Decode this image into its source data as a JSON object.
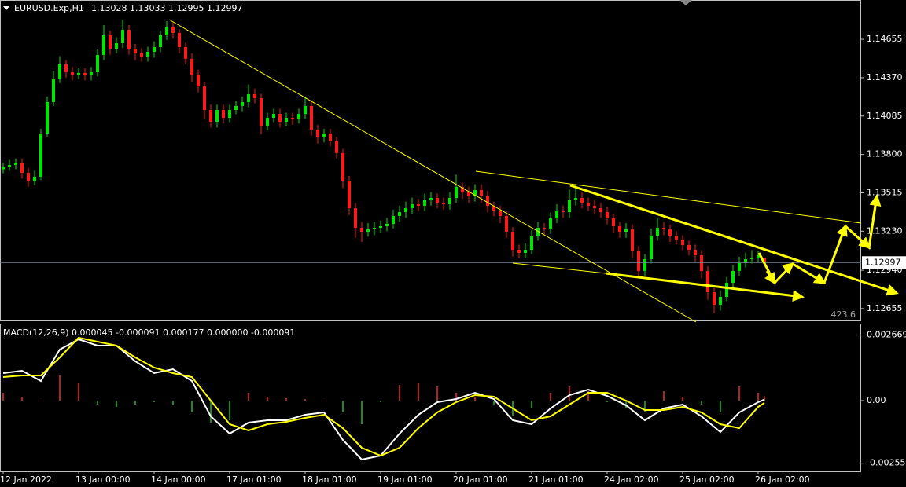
{
  "chart_data": [
    {
      "type": "candlestick",
      "title": "EURUSD.Exp,H1",
      "ohlc_label": "1.13028 1.13033 1.12995 1.12997",
      "up_color": "#00e600",
      "down_color": "#ff1a1a",
      "xlim": [
        -0.5,
        136.375
      ],
      "ylim": [
        1.12567,
        1.14947
      ],
      "yticks": [
        1.14655,
        {
          "value": 1.1437,
          "label": "1.14370"
        },
        1.14085,
        {
          "value": 1.138,
          "label": "1.13800"
        },
        1.13515,
        {
          "value": 1.1323,
          "label": "1.13230"
        },
        {
          "value": 1.1294,
          "label": "1.12940"
        },
        1.12655
      ],
      "xticks": [
        {
          "value": 0,
          "label": "12 Jan 2022"
        },
        {
          "value": 12,
          "label": "13 Jan 00:00"
        },
        {
          "value": 24,
          "label": "14 Jan 00:00"
        },
        {
          "value": 36,
          "label": "17 Jan 01:00"
        },
        {
          "value": 48,
          "label": "18 Jan 01:00"
        },
        {
          "value": 60,
          "label": "19 Jan 01:00"
        },
        {
          "value": 72,
          "label": "20 Jan 01:00"
        },
        {
          "value": 84,
          "label": "21 Jan 01:00"
        },
        {
          "value": 96,
          "label": "24 Jan 02:00"
        },
        {
          "value": 108,
          "label": "25 Jan 02:00"
        },
        {
          "value": 120,
          "label": "26 Jan 02:00"
        }
      ],
      "current_price": {
        "value": 1.12997,
        "label": "1.12997"
      },
      "level_label": "423.6",
      "open": [
        1.1369,
        1.13705,
        1.13722,
        1.13734,
        1.13664,
        1.13605,
        1.13635,
        1.13955,
        1.14189,
        1.14364,
        1.14469,
        1.1441,
        1.14393,
        1.14405,
        1.14387,
        1.1441,
        1.14539,
        1.14685,
        1.14585,
        1.14626,
        1.14725,
        1.14585,
        1.1455,
        1.14527,
        1.14562,
        1.14597,
        1.14685,
        1.14743,
        1.14702,
        1.14597,
        1.1451,
        1.14393,
        1.14305,
        1.1413,
        1.14043,
        1.1413,
        1.14072,
        1.1413,
        1.1416,
        1.14189,
        1.14247,
        1.14218,
        1.14014,
        1.14072,
        1.14101,
        1.14043,
        1.14072,
        1.1406,
        1.14101,
        1.1416,
        1.13985,
        1.13926,
        1.13955,
        1.13897,
        1.1381,
        1.13605,
        1.13401,
        1.13255,
        1.13226,
        1.13244,
        1.13255,
        1.13267,
        1.13285,
        1.13343,
        1.13372,
        1.13401,
        1.1343,
        1.13419,
        1.1346,
        1.13477,
        1.13442,
        1.1343,
        1.13477,
        1.13559,
        1.13518,
        1.13489,
        1.13535,
        1.13489,
        1.13419,
        1.13384,
        1.13343,
        1.13226,
        1.13092,
        1.13069,
        1.13092,
        1.13197,
        1.13255,
        1.13244,
        1.13325,
        1.13384,
        1.13372,
        1.1346,
        1.13477,
        1.13442,
        1.13419,
        1.13401,
        1.13372,
        1.13325,
        1.13267,
        1.13226,
        1.13244,
        1.1308,
        1.12935,
        1.13022,
        1.13197,
        1.13255,
        1.13244,
        1.13197,
        1.13168,
        1.13127,
        1.13092,
        1.13051,
        1.12935,
        1.12777,
        1.12684,
        1.12742,
        1.12847,
        1.12935,
        1.12993,
        1.13022,
        1.13034,
        1.13028
      ],
      "high": [
        1.1374,
        1.1376,
        1.1377,
        1.1377,
        1.137,
        1.1368,
        1.1399,
        1.1423,
        1.1442,
        1.1453,
        1.145,
        1.1445,
        1.1444,
        1.1444,
        1.1445,
        1.1458,
        1.1476,
        1.1472,
        1.1467,
        1.148,
        1.1476,
        1.1462,
        1.1459,
        1.146,
        1.1464,
        1.1472,
        1.1479,
        1.1478,
        1.1473,
        1.1463,
        1.1455,
        1.1443,
        1.1434,
        1.1417,
        1.1417,
        1.1417,
        1.1417,
        1.142,
        1.1423,
        1.1432,
        1.1429,
        1.1425,
        1.1411,
        1.1414,
        1.1414,
        1.1411,
        1.1411,
        1.1414,
        1.1422,
        1.142,
        1.1402,
        1.1399,
        1.1399,
        1.1393,
        1.1384,
        1.1364,
        1.1344,
        1.133,
        1.1329,
        1.133,
        1.1331,
        1.1333,
        1.1339,
        1.1342,
        1.1345,
        1.1348,
        1.1347,
        1.1351,
        1.1352,
        1.1351,
        1.1348,
        1.1352,
        1.1365,
        1.1359,
        1.1356,
        1.1358,
        1.1358,
        1.1353,
        1.1345,
        1.1342,
        1.1338,
        1.1326,
        1.1313,
        1.1314,
        1.1324,
        1.133,
        1.1329,
        1.1337,
        1.1343,
        1.1342,
        1.1354,
        1.1358,
        1.1352,
        1.1348,
        1.1346,
        1.1344,
        1.1341,
        1.1336,
        1.133,
        1.1329,
        1.1328,
        1.1312,
        1.1306,
        1.1325,
        1.1333,
        1.133,
        1.1328,
        1.1323,
        1.132,
        1.1316,
        1.1313,
        1.1309,
        1.1297,
        1.1281,
        1.1279,
        1.1289,
        1.1298,
        1.1304,
        1.1307,
        1.1309,
        1.1308,
        1.13033
      ],
      "low": [
        1.1366,
        1.1368,
        1.1369,
        1.1362,
        1.1356,
        1.1357,
        1.1361,
        1.1393,
        1.1416,
        1.1433,
        1.1437,
        1.1435,
        1.1436,
        1.1435,
        1.1435,
        1.1438,
        1.145,
        1.1454,
        1.1455,
        1.1459,
        1.1454,
        1.145,
        1.1449,
        1.1449,
        1.1452,
        1.1456,
        1.1465,
        1.1466,
        1.1455,
        1.1447,
        1.1434,
        1.1426,
        1.1406,
        1.14,
        1.14,
        1.1403,
        1.1404,
        1.141,
        1.1412,
        1.1415,
        1.1418,
        1.1395,
        1.1398,
        1.1404,
        1.14,
        1.1401,
        1.1402,
        1.1403,
        1.1406,
        1.1394,
        1.1388,
        1.1389,
        1.1386,
        1.1377,
        1.1355,
        1.1335,
        1.1318,
        1.1315,
        1.1319,
        1.132,
        1.1322,
        1.1323,
        1.1325,
        1.133,
        1.1333,
        1.1336,
        1.1338,
        1.1338,
        1.1342,
        1.134,
        1.1339,
        1.1339,
        1.1344,
        1.1347,
        1.1344,
        1.1345,
        1.1344,
        1.1337,
        1.1334,
        1.1329,
        1.1318,
        1.1304,
        1.1303,
        1.1303,
        1.1306,
        1.1316,
        1.132,
        1.1321,
        1.1329,
        1.1333,
        1.1333,
        1.1342,
        1.134,
        1.1338,
        1.1336,
        1.1333,
        1.1328,
        1.1322,
        1.1318,
        1.1318,
        1.1303,
        1.1288,
        1.129,
        1.1299,
        1.1316,
        1.132,
        1.1315,
        1.1313,
        1.1309,
        1.1305,
        1.13,
        1.1288,
        1.1272,
        1.1262,
        1.1264,
        1.1271,
        1.1281,
        1.129,
        1.1296,
        1.1299,
        1.13,
        1.12995
      ],
      "close": [
        1.13705,
        1.13722,
        1.13734,
        1.13664,
        1.13605,
        1.13635,
        1.13955,
        1.14189,
        1.14364,
        1.14469,
        1.1441,
        1.14393,
        1.14405,
        1.14387,
        1.1441,
        1.14539,
        1.14685,
        1.14585,
        1.14626,
        1.14725,
        1.14585,
        1.1455,
        1.14527,
        1.14562,
        1.14597,
        1.14685,
        1.14743,
        1.14702,
        1.14597,
        1.1451,
        1.14393,
        1.14305,
        1.1413,
        1.14043,
        1.1413,
        1.14072,
        1.1413,
        1.1416,
        1.14189,
        1.14247,
        1.14218,
        1.14014,
        1.14072,
        1.14101,
        1.14043,
        1.14072,
        1.1406,
        1.14101,
        1.1416,
        1.13985,
        1.13926,
        1.13955,
        1.13897,
        1.1381,
        1.13605,
        1.13401,
        1.13255,
        1.13226,
        1.13244,
        1.13255,
        1.13267,
        1.13285,
        1.13343,
        1.13372,
        1.13401,
        1.1343,
        1.13419,
        1.1346,
        1.13477,
        1.13442,
        1.1343,
        1.13477,
        1.13559,
        1.13518,
        1.13489,
        1.13535,
        1.13489,
        1.13419,
        1.13384,
        1.13343,
        1.13226,
        1.13092,
        1.13069,
        1.13092,
        1.13197,
        1.13255,
        1.13244,
        1.13325,
        1.13384,
        1.13372,
        1.1346,
        1.13477,
        1.13442,
        1.13419,
        1.13401,
        1.13372,
        1.13325,
        1.13267,
        1.13226,
        1.13244,
        1.1308,
        1.12935,
        1.13022,
        1.13197,
        1.13255,
        1.13244,
        1.13197,
        1.13168,
        1.13127,
        1.13092,
        1.13051,
        1.12935,
        1.12777,
        1.12684,
        1.12742,
        1.12847,
        1.12935,
        1.12993,
        1.13022,
        1.13034,
        1.13051,
        1.12997
      ]
    },
    {
      "type": "macd",
      "title": "MACD(12,26,9) 0.000045 -0.000091 0.000177 0.000000 -0.000091",
      "xlim": [
        -0.5,
        136.375
      ],
      "ylim": [
        -0.00288,
        0.003104
      ],
      "yticks": [
        0.002669,
        {
          "value": 0,
          "label": "0.00"
        },
        -0.002551
      ],
      "x": [
        0,
        3,
        6,
        9,
        12,
        15,
        18,
        21,
        24,
        27,
        30,
        33,
        36,
        39,
        42,
        45,
        48,
        51,
        54,
        57,
        60,
        63,
        66,
        69,
        72,
        75,
        78,
        81,
        84,
        87,
        90,
        93,
        96,
        99,
        102,
        105,
        108,
        111,
        114,
        117,
        120,
        121
      ],
      "series": [
        {
          "style": "histogram",
          "color": "#b22222",
          "negative_color": "#1f8a1f",
          "values": [
            0.00032,
            0.00016,
            0,
            0.001024,
            0.000704,
            -0.00016,
            -0.000256,
            -0.00016,
            -6.4e-05,
            -0.000192,
            -0.00048,
            -0.000896,
            -0.0008,
            0.00032,
            0.00016,
            9.6e-05,
            6.4e-05,
            0,
            -0.00048,
            -0.00096,
            -6.4e-05,
            0.00064,
            0.000704,
            0.000576,
            0.00032,
            0.00016,
            -0.00016,
            -0.00064,
            -0.00032,
            0.00032,
            0.000576,
            0.000384,
            -6.4e-05,
            -0.00032,
            -0.00048,
            0.000384,
            0.00016,
            -0.00016,
            -0.00048,
            0.000576,
            0.00032,
            0.000177
          ]
        },
        {
          "style": "line",
          "color": "#ffffff",
          "values": [
            0.00112,
            0.001216,
            0.0008,
            0.00208,
            0.002496,
            0.00224,
            0.00224,
            0.0016,
            0.00112,
            0.00128,
            0.0008,
            -0.00064,
            -0.001344,
            -0.000896,
            -0.0008,
            -0.0008,
            -0.000576,
            -0.00048,
            -0.0016,
            -0.0024,
            -0.00224,
            -0.001344,
            -0.000576,
            -6.4e-05,
            6.4e-05,
            0.00032,
            6.4e-05,
            -0.0008,
            -0.00096,
            -0.00032,
            0.000224,
            0.000448,
            0.000192,
            -0.000192,
            -0.0008,
            -0.00032,
            -0.00016,
            -0.00064,
            -0.00128,
            -0.00048,
            -6.4e-05,
            4.5e-05
          ]
        },
        {
          "style": "line",
          "color": "#ffff00",
          "values": [
            0.00096,
            0.001024,
            0.001024,
            0.00176,
            0.00256,
            0.0024,
            0.00224,
            0.00176,
            0.001344,
            0.00112,
            0.00096,
            0,
            -0.00096,
            -0.001216,
            -0.00096,
            -0.000864,
            -0.000704,
            -0.000576,
            -0.00112,
            -0.00192,
            -0.00224,
            -0.00192,
            -0.00112,
            -0.00048,
            -6.4e-05,
            0.000224,
            0.00016,
            -0.00032,
            -0.0008,
            -0.00064,
            -0.00016,
            0.00032,
            0.00032,
            0,
            -0.000384,
            -0.000384,
            -0.000256,
            -0.00048,
            -0.00096,
            -0.00112,
            -0.000256,
            -9.1e-05
          ]
        }
      ]
    }
  ]
}
